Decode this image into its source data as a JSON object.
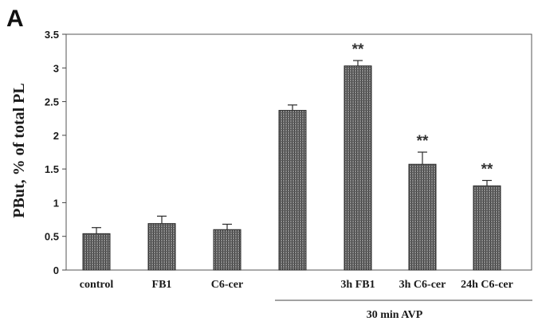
{
  "chart_data": {
    "type": "bar",
    "panel_label": "A",
    "ylabel": "PBut, % of total PL",
    "xlabel": "",
    "ylim": [
      0,
      3.5
    ],
    "yticks": [
      "0",
      "0.5",
      "1",
      "1.5",
      "2",
      "2.5",
      "3",
      "3.5"
    ],
    "categories": [
      "control",
      "FB1",
      "C6-cer",
      "",
      "3h FB1",
      "3h C6-cer",
      "24h C6-cer"
    ],
    "values": [
      0.54,
      0.69,
      0.6,
      2.37,
      3.03,
      1.57,
      1.25
    ],
    "errors": [
      0.09,
      0.11,
      0.08,
      0.08,
      0.08,
      0.18,
      0.08
    ],
    "annotations": [
      "",
      "",
      "",
      "",
      "**",
      "**",
      "**"
    ],
    "group_label": "30 min AVP",
    "group_range": [
      3,
      6
    ],
    "bar_color": "#6e6e6e",
    "grid": false
  }
}
